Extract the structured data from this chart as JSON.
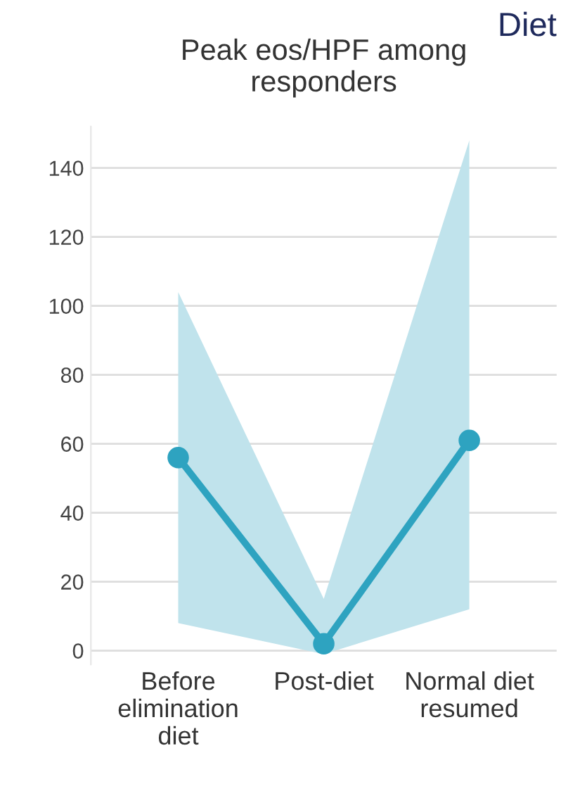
{
  "chart_data": {
    "type": "line",
    "title": "Peak eos/HPF among\nresponders",
    "annotations": [
      "Diet"
    ],
    "categories": [
      "Before\nelimination\ndiet",
      "Post-diet",
      "Normal diet\nresumed"
    ],
    "series": [
      {
        "color": "#2ea3c0",
        "values": [
          56,
          2,
          61
        ],
        "lower": [
          8,
          -1,
          12
        ],
        "upper": [
          104,
          15,
          148
        ]
      }
    ],
    "ylim": [
      -4,
      152
    ],
    "yticks": [
      0,
      20,
      40,
      60,
      80,
      100,
      120,
      140
    ],
    "grid": "y",
    "marker": "circle",
    "line_style": "solid"
  }
}
